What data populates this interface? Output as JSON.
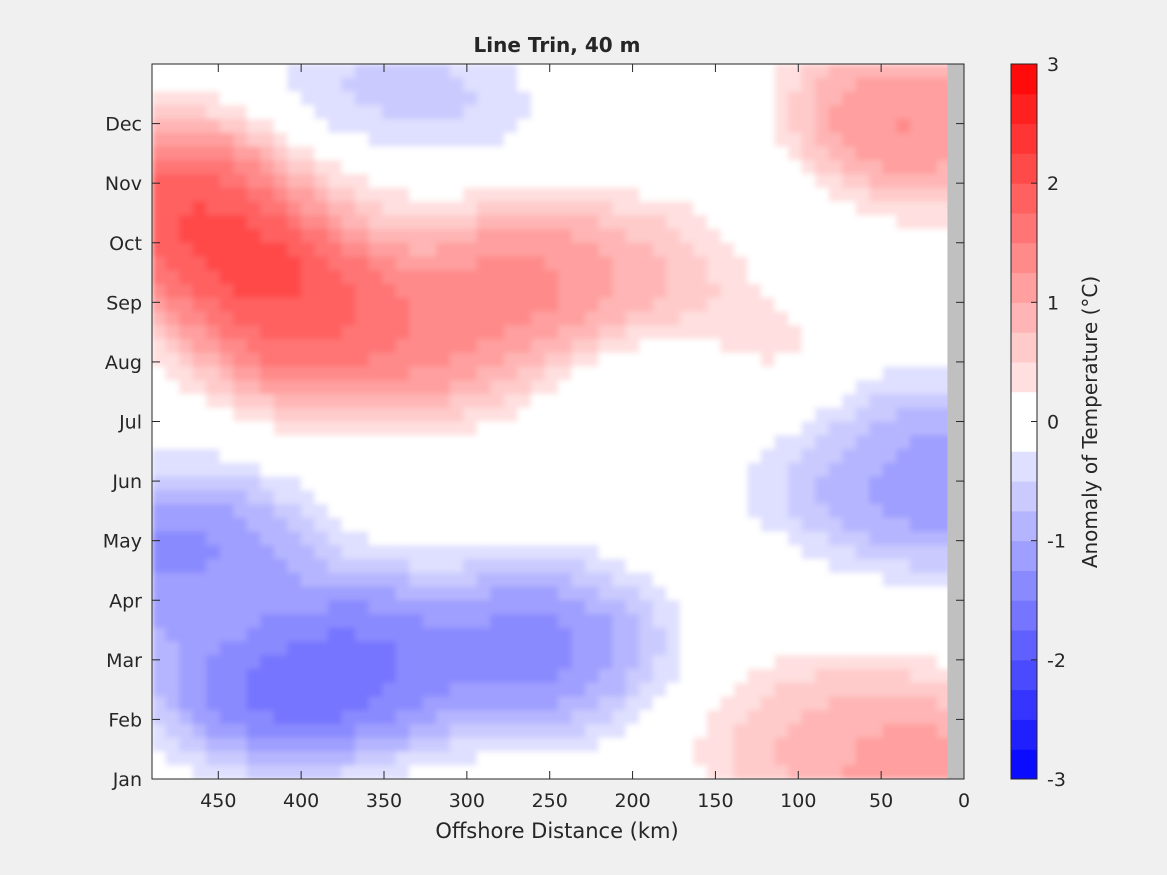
{
  "chart_data": {
    "type": "heatmap",
    "title": "Line Trin, 40 m",
    "xlabel": "Offshore Distance (km)",
    "ylabel": "",
    "x_reversed": true,
    "xlim": [
      0,
      490
    ],
    "xticks": [
      450,
      400,
      350,
      300,
      250,
      200,
      150,
      100,
      50,
      0
    ],
    "y_months": [
      "Jan",
      "Feb",
      "Mar",
      "Apr",
      "May",
      "Jun",
      "Jul",
      "Aug",
      "Sep",
      "Oct",
      "Nov",
      "Dec"
    ],
    "colorbar": {
      "label": "Anomaly of Temperature (°C)",
      "min": -3,
      "max": 3,
      "step": 0.25,
      "ticks": [
        -3,
        -2,
        -1,
        0,
        1,
        2,
        3
      ],
      "tick_labels": [
        "-3",
        "-2",
        "-1",
        "0",
        "1",
        "2",
        "3"
      ],
      "low_color": "#0000ff",
      "high_color": "#ff0000",
      "mid_color": "#ffffff"
    },
    "nodata_color": "#c0c0c0",
    "nodata_x_range": [
      0,
      10
    ],
    "zero_contour_color": "#000000",
    "anomaly_centers": [
      {
        "x": 470,
        "month": 10.6,
        "value": 2.5
      },
      {
        "x": 420,
        "month": 9.8,
        "value": 2.8
      },
      {
        "x": 390,
        "month": 8.7,
        "value": 2.4
      },
      {
        "x": 330,
        "month": 8.5,
        "value": 1.6
      },
      {
        "x": 270,
        "month": 9.3,
        "value": 1.8
      },
      {
        "x": 180,
        "month": 9.7,
        "value": 1.3
      },
      {
        "x": 360,
        "month": 10.9,
        "value": 0.4
      },
      {
        "x": 40,
        "month": 12.0,
        "value": 1.7
      },
      {
        "x": 120,
        "month": 7.6,
        "value": 0.6
      },
      {
        "x": 470,
        "month": 4.7,
        "value": -1.8
      },
      {
        "x": 410,
        "month": 2.7,
        "value": -2.3
      },
      {
        "x": 360,
        "month": 3.0,
        "value": -1.9
      },
      {
        "x": 260,
        "month": 3.2,
        "value": -1.8
      },
      {
        "x": 440,
        "month": 3.6,
        "value": -1.0
      },
      {
        "x": 20,
        "month": 6.0,
        "value": -1.6
      },
      {
        "x": 70,
        "month": 6.6,
        "value": -1.0
      },
      {
        "x": 340,
        "month": 12.2,
        "value": -0.9
      },
      {
        "x": 30,
        "month": 1.1,
        "value": 1.6
      },
      {
        "x": 80,
        "month": 1.6,
        "value": 1.0
      },
      {
        "x": 170,
        "month": 7.4,
        "value": -0.2
      },
      {
        "x": 130,
        "month": 10.2,
        "value": -0.3
      },
      {
        "x": 175,
        "month": 11.8,
        "value": -0.2
      }
    ]
  }
}
